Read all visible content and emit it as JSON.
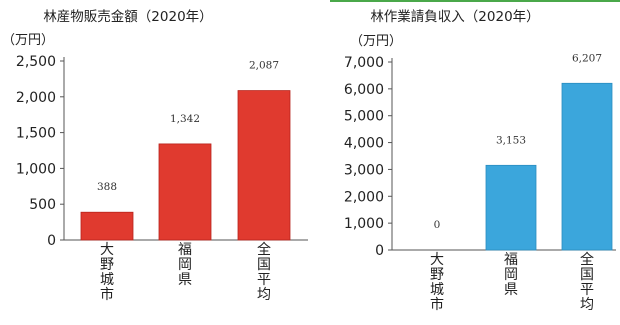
{
  "chart_data": [
    {
      "type": "bar",
      "title": "林産物販売金額（2020年）",
      "unit": "（万円）",
      "categories": [
        "大野城市",
        "福岡県",
        "全国平均"
      ],
      "values": [
        388,
        1342,
        2087
      ],
      "value_labels": [
        "388",
        "1,342",
        "2,087"
      ],
      "ylim": [
        0,
        2500
      ],
      "yticks": [
        0,
        500,
        1000,
        1500,
        2000,
        2500
      ],
      "ytick_labels": [
        "0",
        "500",
        "1,000",
        "1,500",
        "2,000",
        "2,500"
      ],
      "bar_color": "#e03a2f",
      "bar_edge_color": "#b8241c",
      "grid": false,
      "legend": "none"
    },
    {
      "type": "bar",
      "title": "林作業請負収入（2020年）",
      "unit": "（万円）",
      "categories": [
        "大野城市",
        "福岡県",
        "全国平均"
      ],
      "values": [
        0,
        3153,
        6207
      ],
      "value_labels": [
        "0",
        "3,153",
        "6,207"
      ],
      "ylim": [
        0,
        7000
      ],
      "yticks": [
        0,
        1000,
        2000,
        3000,
        4000,
        5000,
        6000,
        7000
      ],
      "ytick_labels": [
        "0",
        "1,000",
        "2,000",
        "3,000",
        "4,000",
        "5,000",
        "6,000",
        "7,000"
      ],
      "bar_color": "#3ba6dc",
      "bar_edge_color": "#2a8cc0",
      "grid": false,
      "legend": "none"
    }
  ]
}
